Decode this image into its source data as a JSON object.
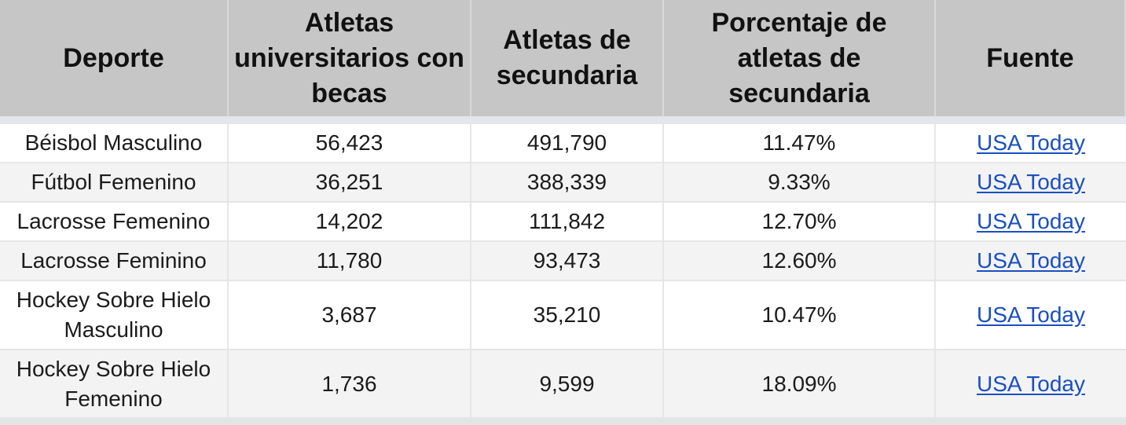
{
  "table": {
    "headers": [
      "Deporte",
      "Atletas universitarios con becas",
      "Atletas de secundaria",
      "Porcentaje de atletas de secundaria",
      "Fuente"
    ],
    "rows": [
      [
        "Béisbol Masculino",
        "56,423",
        "491,790",
        "11.47%",
        "USA Today"
      ],
      [
        "Fútbol Femenino",
        "36,251",
        "388,339",
        "9.33%",
        "USA Today"
      ],
      [
        "Lacrosse Femenino",
        "14,202",
        "111,842",
        "12.70%",
        "USA Today"
      ],
      [
        "Lacrosse Feminino",
        "11,780",
        "93,473",
        "12.60%",
        "USA Today"
      ],
      [
        "Hockey Sobre Hielo Masculino",
        "3,687",
        "35,210",
        "10.47%",
        "USA Today"
      ],
      [
        "Hockey Sobre Hielo Femenino",
        "1,736",
        "9,599",
        "18.09%",
        "USA Today"
      ]
    ]
  },
  "colors": {
    "header_bg": "#c6c6c6",
    "row_odd_bg": "#ffffff",
    "row_even_bg": "#f3f3f3",
    "link": "#1a4fc0"
  }
}
